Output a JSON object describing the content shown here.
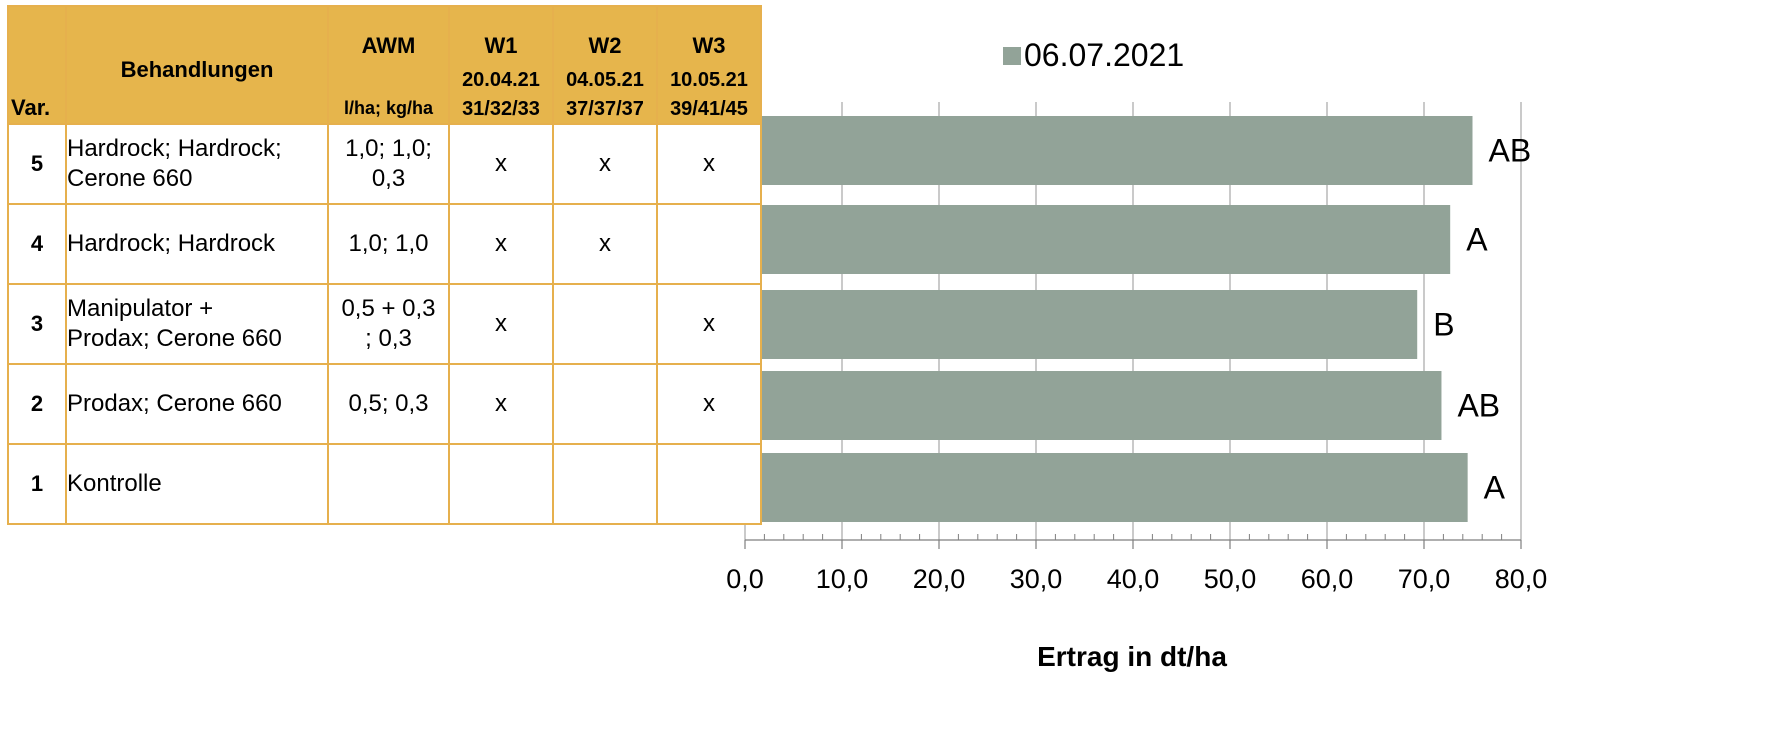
{
  "table": {
    "header": {
      "var": "Var.",
      "treatments": "Behandlungen",
      "awm": "AWM",
      "awm_unit": "l/ha; kg/ha",
      "w1": "W1",
      "w1_date": "20.04.21",
      "w1_stage": "31/32/33",
      "w2": "W2",
      "w2_date": "04.05.21",
      "w2_stage": "37/37/37",
      "w3": "W3",
      "w3_date": "10.05.21",
      "w3_stage": "39/41/45"
    },
    "rows": [
      {
        "var": "5",
        "treat1": "Hardrock; Hardrock;",
        "treat2": "Cerone 660",
        "awm1": "1,0; 1,0;",
        "awm2": "0,3",
        "w1": "x",
        "w2": "x",
        "w3": "x"
      },
      {
        "var": "4",
        "treat1": "Hardrock; Hardrock",
        "treat2": "",
        "awm1": "1,0; 1,0",
        "awm2": "",
        "w1": "x",
        "w2": "x",
        "w3": ""
      },
      {
        "var": "3",
        "treat1": "Manipulator +",
        "treat2": "Prodax; Cerone 660",
        "awm1": "0,5 + 0,3",
        "awm2": "; 0,3",
        "w1": "x",
        "w2": "",
        "w3": "x"
      },
      {
        "var": "2",
        "treat1": "Prodax; Cerone 660",
        "treat2": "",
        "awm1": "0,5; 0,3",
        "awm2": "",
        "w1": "x",
        "w2": "",
        "w3": "x"
      },
      {
        "var": "1",
        "treat1": "Kontrolle",
        "treat2": "",
        "awm1": "",
        "awm2": "",
        "w1": "",
        "w2": "",
        "w3": ""
      }
    ]
  },
  "chart_data": {
    "type": "bar",
    "orientation": "horizontal",
    "categories": [
      "5",
      "4",
      "3",
      "2",
      "1"
    ],
    "series": [
      {
        "name": "06.07.2021",
        "values": [
          75.0,
          72.7,
          69.3,
          71.8,
          74.5
        ],
        "color": "#92a398"
      }
    ],
    "significance_labels": [
      "AB",
      "A",
      "B",
      "AB",
      "A"
    ],
    "xlabel": "Ertrag in dt/ha",
    "xlim": [
      0,
      80
    ],
    "ticks": [
      "0,0",
      "10,0",
      "20,0",
      "30,0",
      "40,0",
      "50,0",
      "60,0",
      "70,0",
      "80,0"
    ],
    "grid": "vertical",
    "legend": "top"
  },
  "colors": {
    "header_bg": "#e6b54c",
    "border": "#e6b04d",
    "bar": "#92a398",
    "grid": "#a6a6a6"
  }
}
